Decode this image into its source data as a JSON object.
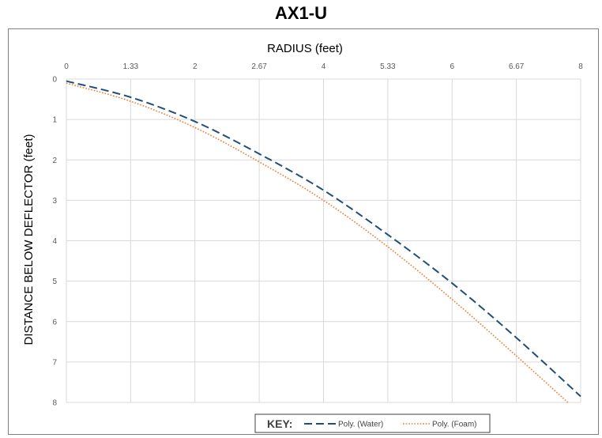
{
  "chart_data": {
    "type": "line",
    "title": "AX1-U",
    "xlabel": "RADIUS (feet)",
    "ylabel": "DISTANCE BELOW DEFLECTOR (feet)",
    "x_ticks": [
      "0",
      "1.33",
      "2",
      "2.67",
      "4",
      "5.33",
      "6",
      "6.67",
      "8"
    ],
    "y_ticks": [
      "0",
      "1",
      "2",
      "3",
      "4",
      "5",
      "6",
      "7",
      "8"
    ],
    "xlim": [
      0,
      8
    ],
    "ylim": [
      0,
      8
    ],
    "y_inverted": true,
    "x_axis_position": "top",
    "grid": true,
    "legend": {
      "title": "KEY:",
      "placement": "bottom-center"
    },
    "series": [
      {
        "name": "Poly. (Water)",
        "style": "dashed",
        "color": "#1f4e79",
        "x": [
          0,
          1,
          2,
          3,
          4,
          5,
          6,
          7,
          8
        ],
        "y": [
          0.05,
          0.45,
          1.05,
          1.85,
          2.75,
          3.85,
          5.05,
          6.4,
          7.85
        ]
      },
      {
        "name": "Poly. (Foam)",
        "style": "dotted",
        "color": "#ed7d31",
        "x": [
          0,
          1,
          2,
          3,
          4,
          5,
          6,
          7,
          7.8
        ],
        "y": [
          0.1,
          0.55,
          1.2,
          2.05,
          3.0,
          4.15,
          5.45,
          6.85,
          8.0
        ]
      }
    ]
  }
}
